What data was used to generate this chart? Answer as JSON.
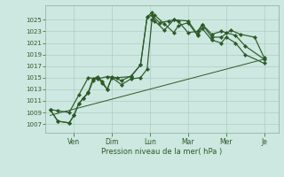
{
  "bg_color": "#cce8e0",
  "grid_color": "#b0ccc4",
  "line_color": "#2d5a27",
  "marker_color": "#2d5a27",
  "xlabel": "Pression niveau de la mer( hPa )",
  "ylim": [
    1005.5,
    1027.5
  ],
  "yticks": [
    1007,
    1009,
    1011,
    1013,
    1015,
    1017,
    1019,
    1021,
    1023,
    1025
  ],
  "day_labels": [
    "Ven",
    "Dim",
    "Lun",
    "Mar",
    "Mer",
    "Je"
  ],
  "day_positions": [
    2.5,
    6.5,
    10.5,
    14.5,
    18.5,
    22.5
  ],
  "series1": {
    "x": [
      0,
      0.8,
      2.0,
      2.5,
      3.0,
      3.5,
      4.0,
      4.5,
      5.0,
      5.5,
      6.0,
      6.5,
      7.5,
      8.5,
      9.5,
      10.2,
      10.7,
      11.0,
      12.0,
      13.0,
      13.5,
      14.5,
      15.5,
      16.0,
      17.0,
      18.0,
      18.5,
      19.5,
      20.5,
      22.5
    ],
    "y": [
      1009.5,
      1007.5,
      1007.2,
      1008.5,
      1010.5,
      1011.5,
      1012.5,
      1014.8,
      1015.2,
      1014.3,
      1013.0,
      1015.2,
      1014.5,
      1015.3,
      1017.2,
      1025.5,
      1026.3,
      1024.8,
      1023.2,
      1025.0,
      1024.7,
      1022.8,
      1023.0,
      1024.2,
      1022.5,
      1023.0,
      1022.8,
      1022.3,
      1020.5,
      1018.2
    ]
  },
  "series2": {
    "x": [
      0,
      0.8,
      2.0,
      2.5,
      3.0,
      3.5,
      4.0,
      4.5,
      5.0,
      5.5,
      6.0,
      6.5,
      7.5,
      8.5,
      9.5,
      10.2,
      10.7,
      11.0,
      12.0,
      13.0,
      13.5,
      14.5,
      15.5,
      16.0,
      17.0,
      18.0,
      18.5,
      19.5,
      20.5,
      22.5
    ],
    "y": [
      1009.5,
      1007.5,
      1007.2,
      1008.5,
      1010.5,
      1011.5,
      1012.3,
      1014.5,
      1015.0,
      1014.0,
      1013.0,
      1015.0,
      1013.8,
      1014.8,
      1015.0,
      1016.5,
      1025.0,
      1025.8,
      1024.3,
      1022.8,
      1024.0,
      1024.5,
      1022.3,
      1023.5,
      1021.5,
      1021.0,
      1022.0,
      1021.0,
      1019.0,
      1017.5
    ]
  },
  "series3_straight": {
    "x": [
      0,
      22.5
    ],
    "y": [
      1008.5,
      1018.2
    ]
  },
  "series4": {
    "x": [
      0,
      0.8,
      2.0,
      3.0,
      4.0,
      5.0,
      6.0,
      7.0,
      8.5,
      9.5,
      10.2,
      10.7,
      11.5,
      12.5,
      13.0,
      14.5,
      15.5,
      16.0,
      17.0,
      18.0,
      19.0,
      20.0,
      21.5,
      22.5
    ],
    "y": [
      1009.5,
      1009.3,
      1009.0,
      1012.0,
      1015.0,
      1014.8,
      1015.2,
      1015.0,
      1015.2,
      1017.2,
      1025.5,
      1025.8,
      1024.5,
      1024.8,
      1025.0,
      1024.8,
      1022.5,
      1024.2,
      1022.0,
      1022.0,
      1023.2,
      1022.5,
      1022.0,
      1018.5
    ]
  }
}
